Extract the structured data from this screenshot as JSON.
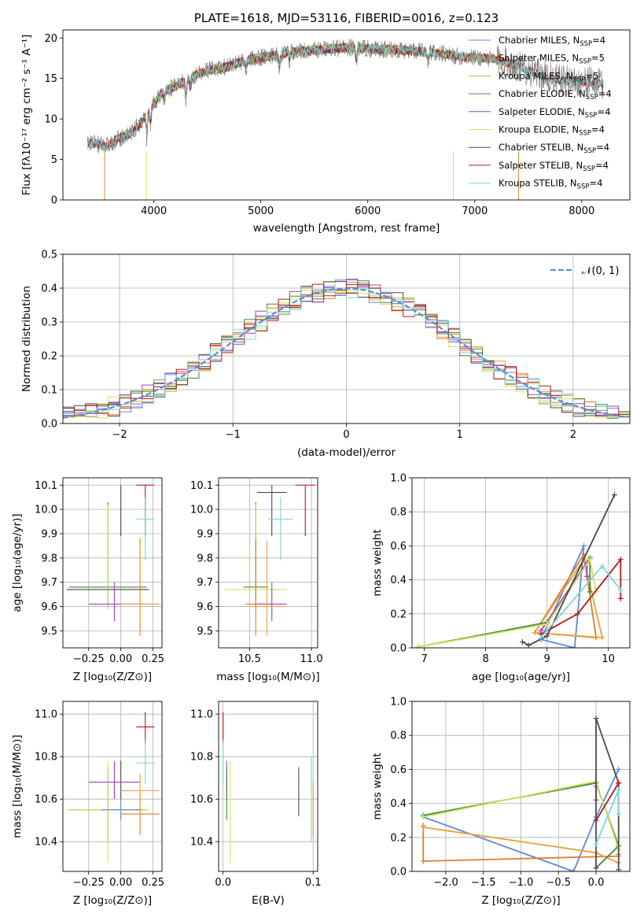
{
  "colors": {
    "chabrier_miles": "#5b8bdc",
    "salpeter_miles": "#e07b2a",
    "kroupa_miles": "#e8a23c",
    "chabrier_elodie": "#3f8a3f",
    "salpeter_elodie": "#a33fc7",
    "kroupa_elodie": "#d4e25a",
    "chabrier_stelib": "#4a4a4a",
    "salpeter_stelib": "#b01a1a",
    "kroupa_stelib": "#7fd6d6",
    "gauss": "#5b8bdc",
    "data": "#808080"
  },
  "chart_data": [
    {
      "id": "spectrum",
      "type": "line",
      "title": "PLATE=1618, MJD=53116, FIBERID=0016, z=0.123",
      "xlabel": "wavelength [Angstrom, rest frame]",
      "ylabel": "Flux [fλ10⁻¹⁷ erg cm⁻² s⁻¹ A⁻¹]",
      "xlim": [
        3150,
        8450
      ],
      "ylim": [
        0,
        21
      ],
      "xticks": [
        4000,
        5000,
        6000,
        7000,
        8000
      ],
      "yticks": [
        0,
        5,
        10,
        15,
        20
      ],
      "legend": [
        {
          "key": "chabrier_miles",
          "label": "Chabrier MILES, N",
          "sub": "SSP",
          "tail": "=4"
        },
        {
          "key": "salpeter_miles",
          "label": "Salpeter MILES, N",
          "sub": "SSP",
          "tail": "=5"
        },
        {
          "key": "kroupa_miles",
          "label": "Kroupa MILES, N",
          "sub": "SSP",
          "tail": "=5"
        },
        {
          "key": "chabrier_elodie",
          "label": "Chabrier ELODIE, N",
          "sub": "SSP",
          "tail": "=4"
        },
        {
          "key": "salpeter_elodie",
          "label": "Salpeter ELODIE, N",
          "sub": "SSP",
          "tail": "=4"
        },
        {
          "key": "kroupa_elodie",
          "label": "Kroupa ELODIE, N",
          "sub": "SSP",
          "tail": "=4"
        },
        {
          "key": "chabrier_stelib",
          "label": "Chabrier STELIB, N",
          "sub": "SSP",
          "tail": "=4"
        },
        {
          "key": "salpeter_stelib",
          "label": "Salpeter STELIB, N",
          "sub": "SSP",
          "tail": "=4"
        },
        {
          "key": "kroupa_stelib",
          "label": "Kroupa STELIB, N",
          "sub": "SSP",
          "tail": "=4"
        }
      ],
      "envelope": {
        "x": [
          3380,
          3450,
          3550,
          3650,
          3750,
          3850,
          3950,
          4000,
          4100,
          4200,
          4300,
          4400,
          4500,
          4600,
          4700,
          4800,
          4900,
          5000,
          5100,
          5200,
          5300,
          5400,
          5500,
          5600,
          5700,
          5800,
          5900,
          6000,
          6100,
          6200,
          6300,
          6400,
          6500,
          6600,
          6700,
          6800,
          6900,
          7000,
          7100,
          7200,
          7300,
          7400,
          7500,
          7600,
          7700,
          7800,
          7900,
          8000,
          8100,
          8200
        ],
        "y": [
          7.0,
          7.0,
          6.5,
          7.5,
          8.0,
          9.0,
          11.0,
          12.0,
          13.5,
          14.0,
          14.8,
          15.5,
          16.0,
          16.2,
          16.5,
          17.0,
          17.3,
          17.6,
          17.8,
          18.0,
          18.3,
          18.4,
          18.5,
          18.6,
          18.7,
          18.8,
          18.8,
          18.7,
          18.6,
          18.6,
          18.5,
          18.4,
          18.3,
          18.2,
          18.0,
          17.8,
          17.7,
          17.6,
          17.5,
          17.3,
          17.0,
          16.5,
          16.0,
          15.5,
          15.0,
          14.8,
          14.7,
          14.6,
          14.5,
          14.4
        ]
      }
    },
    {
      "id": "residuals",
      "type": "line",
      "title": "",
      "xlabel": "(data-model)/error",
      "ylabel": "Normed distribution",
      "xlim": [
        -2.5,
        2.5
      ],
      "ylim": [
        0,
        0.5
      ],
      "xticks": [
        -2,
        -1,
        0,
        1,
        2
      ],
      "yticks": [
        0.0,
        0.1,
        0.2,
        0.3,
        0.4,
        0.5
      ],
      "legend": "𝒩(0, 1)",
      "series_keys": [
        "chabrier_miles",
        "salpeter_miles",
        "kroupa_miles",
        "chabrier_elodie",
        "salpeter_elodie",
        "kroupa_elodie",
        "chabrier_stelib",
        "salpeter_stelib",
        "kroupa_stelib"
      ]
    },
    {
      "id": "age_vs_Z",
      "type": "scatter",
      "xlabel": "Z [log₁₀(Z/Z⊙)]",
      "ylabel": "age  [log₁₀(age/yr)]",
      "xlim": [
        -0.45,
        0.32
      ],
      "ylim": [
        9.43,
        10.13
      ],
      "xticks": [
        -0.25,
        0.0,
        0.25
      ],
      "xticklabels": [
        "−0.25",
        "0.00",
        "0.25"
      ],
      "yticks": [
        9.5,
        9.6,
        9.7,
        9.8,
        9.9,
        10.0,
        10.1
      ],
      "points": [
        {
          "key": "chabrier_elodie",
          "x": -0.1,
          "xe": 0.3,
          "y": 9.68,
          "ye": [
            9.59,
            10.03
          ]
        },
        {
          "key": "kroupa_elodie",
          "x": -0.1,
          "xe": 0.32,
          "y": 9.67,
          "ye": [
            9.59,
            10.02
          ]
        },
        {
          "key": "chabrier_stelib",
          "x": 0.0,
          "xe": 0.0,
          "y": 10.07,
          "ye": [
            9.89,
            10.1
          ]
        },
        {
          "key": "salpeter_stelib",
          "x": 0.19,
          "xe": 0.07,
          "y": 10.1,
          "ye": [
            9.89,
            10.1
          ]
        },
        {
          "key": "kroupa_stelib",
          "x": 0.19,
          "xe": 0.07,
          "y": 9.96,
          "ye": [
            9.79,
            10.05
          ]
        },
        {
          "key": "salpeter_miles",
          "x": 0.15,
          "xe": 0.15,
          "y": 9.61,
          "ye": [
            9.48,
            9.88
          ]
        },
        {
          "key": "salpeter_elodie",
          "x": -0.05,
          "xe": 0.2,
          "y": 9.61,
          "ye": [
            9.54,
            9.7
          ]
        },
        {
          "key": "kroupa_miles",
          "x": 0.15,
          "xe": 0.15,
          "y": 9.61,
          "ye": [
            9.48,
            9.87
          ]
        },
        {
          "key": "chabrier_stelib",
          "x": -0.1,
          "xe": 0.32,
          "y": 9.67,
          "ye": [
            9.67,
            9.67
          ]
        }
      ]
    },
    {
      "id": "age_vs_mass",
      "type": "scatter",
      "xlabel": "mass [log₁₀(M/M⊙)]",
      "xlim": [
        10.25,
        11.05
      ],
      "ylim": [
        9.43,
        10.13
      ],
      "xticks": [
        10.5,
        11.0
      ],
      "xticklabels": [
        "10.5",
        "11.0"
      ],
      "yticks": [
        9.5,
        9.6,
        9.7,
        9.8,
        9.9,
        10.0,
        10.1
      ],
      "points": [
        {
          "key": "chabrier_elodie",
          "x": 10.55,
          "xe": 0.1,
          "y": 9.68,
          "ye": [
            9.59,
            10.03
          ]
        },
        {
          "key": "kroupa_elodie",
          "x": 10.55,
          "xe": 0.25,
          "y": 9.67,
          "ye": [
            9.59,
            10.02
          ]
        },
        {
          "key": "chabrier_stelib",
          "x": 10.68,
          "xe": 0.12,
          "y": 10.07,
          "ye": [
            9.89,
            10.1
          ]
        },
        {
          "key": "salpeter_stelib",
          "x": 10.95,
          "xe": 0.08,
          "y": 10.1,
          "ye": [
            9.89,
            10.1
          ]
        },
        {
          "key": "kroupa_stelib",
          "x": 10.75,
          "xe": 0.1,
          "y": 9.96,
          "ye": [
            9.79,
            10.05
          ]
        },
        {
          "key": "salpeter_miles",
          "x": 10.55,
          "xe": 0.08,
          "y": 9.61,
          "ye": [
            9.48,
            9.88
          ]
        },
        {
          "key": "salpeter_elodie",
          "x": 10.68,
          "xe": 0.12,
          "y": 9.61,
          "ye": [
            9.54,
            9.7
          ]
        },
        {
          "key": "kroupa_miles",
          "x": 10.64,
          "xe": 0.14,
          "y": 9.6,
          "ye": [
            9.48,
            9.87
          ]
        }
      ]
    },
    {
      "id": "weight_vs_age",
      "type": "line",
      "xlabel": "age  [log₁₀(age/yr)]",
      "ylabel": "mass weight",
      "xlim": [
        6.8,
        10.35
      ],
      "ylim": [
        0,
        1.0
      ],
      "xticks": [
        7,
        8,
        9,
        10
      ],
      "yticks": [
        0.0,
        0.2,
        0.4,
        0.6,
        0.8,
        1.0
      ],
      "series": [
        {
          "key": "chabrier_miles",
          "x": [
            8.9,
            9.6,
            9.45,
            8.9
          ],
          "y": [
            0.05,
            0.6,
            0.0,
            0.05
          ]
        },
        {
          "key": "salpeter_miles",
          "x": [
            8.8,
            9.6,
            9.8,
            8.8
          ],
          "y": [
            0.09,
            0.55,
            0.06,
            0.09
          ]
        },
        {
          "key": "kroupa_miles",
          "x": [
            8.8,
            9.6,
            9.9,
            8.8
          ],
          "y": [
            0.09,
            0.52,
            0.06,
            0.09
          ]
        },
        {
          "key": "chabrier_elodie",
          "x": [
            6.9,
            9.0,
            9.7,
            9.7
          ],
          "y": [
            0.005,
            0.15,
            0.53,
            0.33
          ]
        },
        {
          "key": "salpeter_elodie",
          "x": [
            8.9,
            9.65,
            9.65
          ],
          "y": [
            0.1,
            0.5,
            0.42
          ]
        },
        {
          "key": "kroupa_elodie",
          "x": [
            6.9,
            9.0,
            9.7,
            9.8
          ],
          "y": [
            0.005,
            0.14,
            0.52,
            0.33
          ]
        },
        {
          "key": "chabrier_stelib",
          "x": [
            8.6,
            8.7,
            9.0,
            10.1
          ],
          "y": [
            0.035,
            0.015,
            0.07,
            0.9
          ]
        },
        {
          "key": "salpeter_stelib",
          "x": [
            8.9,
            9.5,
            10.2,
            10.2
          ],
          "y": [
            0.08,
            0.2,
            0.52,
            0.29
          ]
        },
        {
          "key": "kroupa_stelib",
          "x": [
            8.9,
            9.9,
            10.2
          ],
          "y": [
            0.06,
            0.48,
            0.34
          ]
        }
      ]
    },
    {
      "id": "mass_vs_Z",
      "type": "scatter",
      "xlabel": "Z [log₁₀(Z/Z⊙)]",
      "ylabel": "mass [log₁₀(M/M⊙)]",
      "xlim": [
        -0.45,
        0.32
      ],
      "ylim": [
        10.26,
        11.06
      ],
      "xticks": [
        -0.25,
        0.0,
        0.25
      ],
      "xticklabels": [
        "−0.25",
        "0.00",
        "0.25"
      ],
      "yticks": [
        10.4,
        10.6,
        10.8,
        11.0
      ],
      "points": [
        {
          "key": "chabrier_elodie",
          "x": -0.1,
          "xe": 0.3,
          "y": 10.55,
          "ye": [
            10.39,
            10.74
          ]
        },
        {
          "key": "kroupa_elodie",
          "x": -0.1,
          "xe": 0.32,
          "y": 10.55,
          "ye": [
            10.3,
            10.78
          ]
        },
        {
          "key": "chabrier_stelib",
          "x": 0.0,
          "xe": 0.0,
          "y": 10.68,
          "ye": [
            10.6,
            10.78
          ]
        },
        {
          "key": "salpeter_stelib",
          "x": 0.19,
          "xe": 0.07,
          "y": 10.94,
          "ye": [
            10.86,
            11.01
          ]
        },
        {
          "key": "kroupa_stelib",
          "x": 0.19,
          "xe": 0.07,
          "y": 10.77,
          "ye": [
            10.67,
            10.88
          ]
        },
        {
          "key": "salpeter_miles",
          "x": 0.15,
          "xe": 0.15,
          "y": 10.53,
          "ye": [
            10.43,
            10.63
          ]
        },
        {
          "key": "salpeter_elodie",
          "x": -0.05,
          "xe": 0.2,
          "y": 10.68,
          "ye": [
            10.6,
            10.78
          ]
        },
        {
          "key": "chabrier_miles",
          "x": 0.0,
          "xe": 0.15,
          "y": 10.55,
          "ye": [
            10.5,
            10.6
          ]
        },
        {
          "key": "kroupa_miles",
          "x": 0.15,
          "xe": 0.15,
          "y": 10.64,
          "ye": [
            10.56,
            10.72
          ]
        }
      ]
    },
    {
      "id": "mass_vs_ebv",
      "type": "scatter",
      "xlabel": "E(B-V)",
      "xlim": [
        -0.005,
        0.105
      ],
      "ylim": [
        10.26,
        11.06
      ],
      "xticks": [
        0.0,
        0.1
      ],
      "xticklabels": [
        "0.0",
        "0.1"
      ],
      "yticks": [
        10.4,
        10.6,
        10.8,
        11.0
      ],
      "points": [
        {
          "key": "salpeter_stelib",
          "x": 0.0,
          "ye": [
            10.86,
            11.01
          ]
        },
        {
          "key": "kroupa_stelib",
          "x": 0.0,
          "ye": [
            10.67,
            10.88
          ]
        },
        {
          "key": "salpeter_elodie",
          "x": 0.004,
          "ye": [
            10.6,
            10.78
          ]
        },
        {
          "key": "chabrier_elodie",
          "x": 0.004,
          "ye": [
            10.5,
            10.74
          ]
        },
        {
          "key": "kroupa_elodie",
          "x": 0.008,
          "ye": [
            10.3,
            10.78
          ]
        },
        {
          "key": "chabrier_stelib",
          "x": 0.084,
          "ye": [
            10.52,
            10.75
          ]
        },
        {
          "key": "kroupa_stelib",
          "x": 0.098,
          "ye": [
            10.4,
            10.8
          ]
        },
        {
          "key": "kroupa_miles",
          "x": 0.1,
          "ye": [
            10.42,
            10.68
          ]
        }
      ]
    },
    {
      "id": "weight_vs_Z",
      "type": "line",
      "xlabel": "Z [log₁₀(Z/Z⊙)]",
      "ylabel": "mass weight",
      "xlim": [
        -2.45,
        0.45
      ],
      "ylim": [
        0,
        1.0
      ],
      "xticks": [
        -2.0,
        -1.5,
        -1.0,
        -0.5,
        0.0
      ],
      "xticklabels": [
        "−2.0",
        "−1.5",
        "−1.0",
        "−0.5",
        "0.0"
      ],
      "yticks": [
        0.0,
        0.2,
        0.4,
        0.6,
        0.8,
        1.0
      ],
      "series": [
        {
          "key": "chabrier_miles",
          "x": [
            -2.3,
            -0.3,
            0.0,
            0.3
          ],
          "y": [
            0.32,
            0.0,
            0.32,
            0.6
          ]
        },
        {
          "key": "salpeter_miles",
          "x": [
            -2.3,
            -2.3,
            0.3,
            0.3
          ],
          "y": [
            0.27,
            0.06,
            0.09,
            0.1
          ]
        },
        {
          "key": "kroupa_miles",
          "x": [
            -2.3,
            0.0,
            0.3
          ],
          "y": [
            0.26,
            0.11,
            0.05
          ]
        },
        {
          "key": "chabrier_elodie",
          "x": [
            -2.3,
            0.0,
            0.3,
            0.0
          ],
          "y": [
            0.33,
            0.52,
            0.15,
            0.02
          ]
        },
        {
          "key": "salpeter_elodie",
          "x": [
            0.0,
            0.0
          ],
          "y": [
            0.5,
            0.42
          ]
        },
        {
          "key": "kroupa_elodie",
          "x": [
            -2.3,
            0.0,
            0.3
          ],
          "y": [
            0.32,
            0.53,
            0.13
          ]
        },
        {
          "key": "chabrier_stelib",
          "x": [
            0.0,
            0.0,
            0.3,
            0.3
          ],
          "y": [
            0.02,
            0.9,
            0.52,
            0.01
          ]
        },
        {
          "key": "salpeter_stelib",
          "x": [
            0.0,
            0.3,
            0.3
          ],
          "y": [
            0.3,
            0.52,
            0.52
          ]
        },
        {
          "key": "kroupa_stelib",
          "x": [
            0.0,
            0.3,
            0.3
          ],
          "y": [
            0.16,
            0.48,
            0.34
          ]
        }
      ]
    }
  ]
}
